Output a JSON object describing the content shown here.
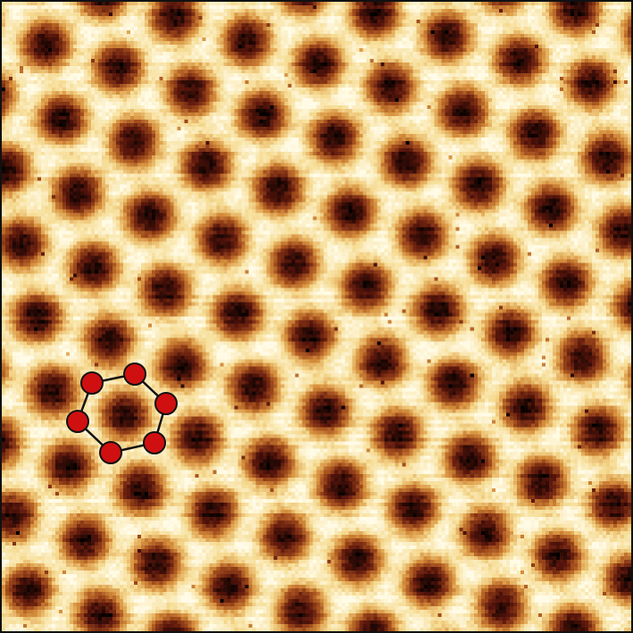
{
  "image": {
    "kind": "stm-topography",
    "colormap": [
      "#000000",
      "#5a160c",
      "#a04a1c",
      "#d8923e",
      "#f6dc94",
      "#fffbe6"
    ],
    "lattice": "honeycomb",
    "marker_color": "#d01010",
    "marker_stroke": "#111111"
  }
}
